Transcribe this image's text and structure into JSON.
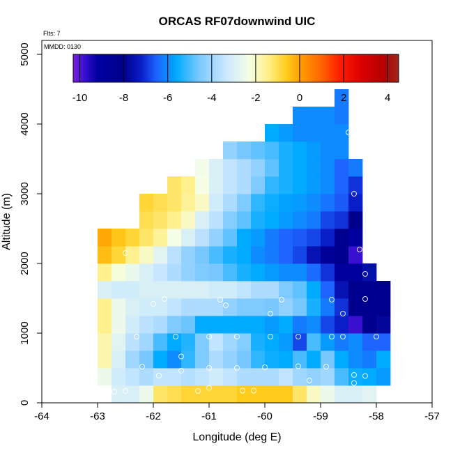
{
  "chart_data": {
    "type": "heatmap",
    "title": "ORCAS RF07downwind UIC",
    "xlabel": "Longitude (deg E)",
    "ylabel": "Altitude (m)",
    "annotations": {
      "flts": "Flts: 7",
      "mmdd": "MMDD: 0130"
    },
    "xlim": [
      -64,
      -57
    ],
    "ylim": [
      0,
      5200
    ],
    "x_ticks": [
      "-64",
      "-63",
      "-62",
      "-61",
      "-60",
      "-59",
      "-58",
      "-57"
    ],
    "y_ticks": [
      "0",
      "1000",
      "2000",
      "3000",
      "4000",
      "5000"
    ],
    "colorbar": {
      "range": [
        -10.3,
        4.5
      ],
      "ticks": [
        "-10",
        "-8",
        "-6",
        "-4",
        "-2",
        "0",
        "2",
        "4"
      ],
      "stops": [
        [
          -10.3,
          "#7b1fe0"
        ],
        [
          -9.8,
          "#3a10d0"
        ],
        [
          -9.2,
          "#0000a0"
        ],
        [
          -8.0,
          "#00008c"
        ],
        [
          -7.2,
          "#0a1ec8"
        ],
        [
          -6.5,
          "#1e64ff"
        ],
        [
          -5.6,
          "#00aaff"
        ],
        [
          -4.6,
          "#78c8ff"
        ],
        [
          -3.4,
          "#c8e6ff"
        ],
        [
          -2.3,
          "#f5ffe6"
        ],
        [
          -1.4,
          "#ffee82"
        ],
        [
          -0.6,
          "#ffcc1e"
        ],
        [
          0.0,
          "#ffa000"
        ],
        [
          1.0,
          "#ff6400"
        ],
        [
          1.8,
          "#ff1e00"
        ],
        [
          2.8,
          "#dc0000"
        ],
        [
          3.8,
          "#b40000"
        ],
        [
          4.5,
          "#a0281e"
        ]
      ]
    },
    "grid": {
      "lon_start": -63.0,
      "lon_step": 0.25,
      "alt_start": 0,
      "alt_step": 250,
      "rows": [
        [
          null,
          -3.0,
          -3.0,
          -2.5,
          -1.2,
          -1.0,
          -0.8,
          -0.8,
          -0.8,
          -0.8,
          -0.6,
          -0.6,
          -0.6,
          -0.6,
          -1.2,
          -2.0,
          -2.5,
          -3.0,
          -3.0,
          -2.8
        ],
        [
          -2.5,
          -3.2,
          -3.5,
          -3.8,
          -3.5,
          -3.5,
          -3.7,
          -3.5,
          -3.2,
          -3.5,
          -3.8,
          -3.8,
          -3.8,
          -3.5,
          -4.0,
          -4.2,
          -4.0,
          -5.0,
          -5.5,
          -5.6,
          -5.8
        ],
        [
          -1.8,
          -3.0,
          -4.0,
          -4.6,
          -5.6,
          -6.0,
          -5.2,
          -4.5,
          -3.8,
          -4.2,
          -4.6,
          -5.2,
          -5.5,
          -5.6,
          -5.0,
          -5.6,
          -4.6,
          -5.6,
          -6.0,
          -6.2,
          -5.6
        ],
        [
          -1.8,
          -2.8,
          -3.6,
          -4.0,
          -5.0,
          -5.6,
          -5.3,
          -4.5,
          -3.5,
          -4.0,
          -4.4,
          -5.4,
          -5.6,
          -5.8,
          -6.8,
          -5.0,
          -5.8,
          -6.2,
          -6.0,
          -6.5,
          -6.5
        ],
        [
          -1.5,
          -2.5,
          -3.2,
          -3.6,
          -3.8,
          -4.5,
          -4.7,
          -5.6,
          -5.6,
          -5.6,
          -5.6,
          -5.6,
          -5.8,
          -5.6,
          -6.2,
          -6.0,
          -6.8,
          -7.2,
          -9.8,
          -8.2,
          -7.8
        ],
        [
          -1.5,
          -2.5,
          -3.0,
          -3.2,
          -3.2,
          -3.5,
          -3.8,
          -3.8,
          -3.8,
          -4.2,
          -4.5,
          -4.5,
          -4.6,
          -4.2,
          -4.6,
          -5.4,
          -6.2,
          -7.0,
          -8.2,
          -8.2,
          -8.2
        ],
        [
          -3.0,
          -3.2,
          -3.2,
          -3.0,
          -3.0,
          -3.0,
          -3.0,
          -3.0,
          -3.2,
          -3.2,
          -3.5,
          -3.8,
          -3.8,
          -4.5,
          -4.8,
          -5.6,
          -6.5,
          -7.5,
          -8.2,
          -8.2,
          -8.2
        ],
        [
          -1.5,
          -2.2,
          -2.6,
          -3.0,
          -3.4,
          -3.8,
          -4.2,
          -4.5,
          -4.6,
          -5.0,
          -5.4,
          -5.6,
          -5.8,
          -6.0,
          -6.0,
          -6.4,
          -7.0,
          -9.0,
          -9.0,
          -7.6
        ],
        [
          -0.4,
          -0.8,
          -1.5,
          -2.0,
          -2.8,
          -3.6,
          -4.2,
          -4.6,
          -5.0,
          -5.4,
          -5.6,
          -6.0,
          -6.2,
          -6.5,
          -6.8,
          -7.5,
          -8.8,
          -8.2,
          -9.8
        ],
        [
          -0.1,
          -0.5,
          -0.8,
          -1.2,
          -1.6,
          -2.3,
          -3.0,
          -3.6,
          -4.2,
          -4.8,
          -5.6,
          -5.8,
          -6.2,
          -6.5,
          -6.6,
          -6.8,
          -7.2,
          -8.2,
          -9.0
        ],
        [
          null,
          null,
          null,
          -1.0,
          -1.2,
          -1.5,
          -2.0,
          -3.0,
          -3.6,
          -4.4,
          -4.8,
          -5.4,
          -5.6,
          -5.8,
          -6.0,
          -6.2,
          -6.8,
          -7.0,
          -8.2
        ],
        [
          null,
          null,
          null,
          -0.8,
          -1.0,
          -1.2,
          -1.6,
          -2.0,
          -3.2,
          -3.8,
          -4.5,
          -5.2,
          -5.5,
          -5.7,
          -5.8,
          -6.0,
          -6.3,
          -6.6,
          -7.2
        ],
        [
          null,
          null,
          null,
          null,
          null,
          -1.2,
          -1.5,
          -2.3,
          -3.0,
          -3.5,
          -3.8,
          -4.5,
          -5.2,
          -5.4,
          -5.6,
          -5.8,
          -6.0,
          -6.5,
          -7.0
        ],
        [
          null,
          null,
          null,
          null,
          null,
          null,
          null,
          -2.4,
          -3.0,
          -3.5,
          -3.8,
          -4.2,
          -4.8,
          -5.4,
          -5.6,
          -5.8,
          -6.0,
          -6.5,
          -6.2
        ],
        [
          null,
          null,
          null,
          null,
          null,
          null,
          null,
          null,
          null,
          -4.2,
          -4.6,
          -4.8,
          -5.0,
          -5.4,
          -5.6,
          -5.8,
          -6.0,
          -6.0
        ],
        [
          null,
          null,
          null,
          null,
          null,
          null,
          null,
          null,
          null,
          null,
          null,
          null,
          -5.6,
          -5.8,
          -6.0,
          -6.0,
          -6.0,
          -6.0
        ],
        [
          null,
          null,
          null,
          null,
          null,
          null,
          null,
          null,
          null,
          null,
          null,
          null,
          null,
          null,
          -6.0,
          -6.0,
          -6.0,
          -6.2
        ],
        [
          null,
          null,
          null,
          null,
          null,
          null,
          null,
          null,
          null,
          null,
          null,
          null,
          null,
          null,
          null,
          null,
          null,
          -6.2
        ]
      ]
    },
    "sample_points": [
      [
        -62.2,
        520
      ],
      [
        -61.9,
        390
      ],
      [
        -61.5,
        460
      ],
      [
        -61.5,
        665
      ],
      [
        -61.2,
        170
      ],
      [
        -61.0,
        215
      ],
      [
        -60.4,
        175
      ],
      [
        -60.2,
        175
      ],
      [
        -61.0,
        500
      ],
      [
        -60.5,
        500
      ],
      [
        -60.0,
        510
      ],
      [
        -59.4,
        525
      ],
      [
        -59.2,
        320
      ],
      [
        -58.9,
        520
      ],
      [
        -58.4,
        400
      ],
      [
        -58.2,
        385
      ],
      [
        -58.4,
        285
      ],
      [
        -61.0,
        950
      ],
      [
        -60.5,
        950
      ],
      [
        -59.9,
        950
      ],
      [
        -59.4,
        950
      ],
      [
        -58.8,
        950
      ],
      [
        -58.6,
        950
      ],
      [
        -58.0,
        950
      ],
      [
        -62.3,
        950
      ],
      [
        -61.6,
        950
      ],
      [
        -58.6,
        1280
      ],
      [
        -58.8,
        1480
      ],
      [
        -59.7,
        1480
      ],
      [
        -58.2,
        1490
      ],
      [
        -60.7,
        1400
      ],
      [
        -60.8,
        1480
      ],
      [
        -59.9,
        1280
      ],
      [
        -61.8,
        1490
      ],
      [
        -62.0,
        1420
      ],
      [
        -62.5,
        2150
      ],
      [
        -58.3,
        2200
      ],
      [
        -58.2,
        1850
      ],
      [
        -58.4,
        3000
      ],
      [
        -58.5,
        3880
      ],
      [
        -62.7,
        160
      ],
      [
        -62.5,
        170
      ]
    ]
  }
}
